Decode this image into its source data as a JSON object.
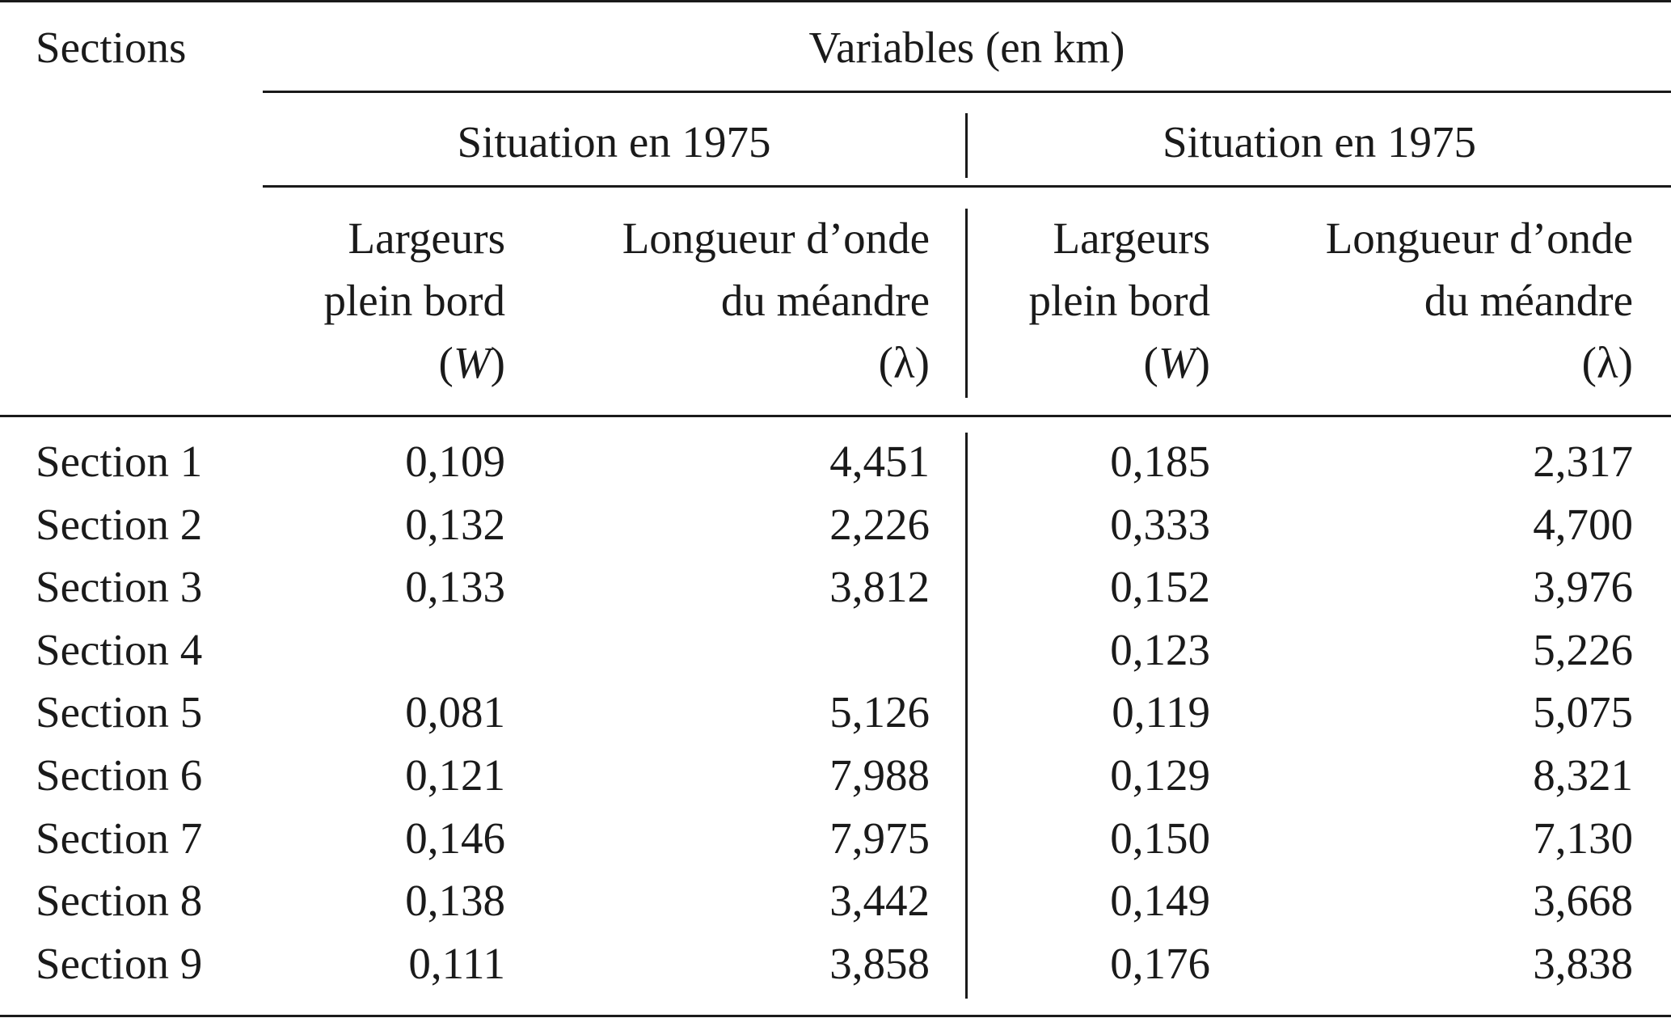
{
  "table": {
    "stub_header": "Sections",
    "top_header": "Variables (en km)",
    "groups": [
      {
        "label": "Situation en 1975"
      },
      {
        "label": "Situation en 1975"
      }
    ],
    "subheaders": [
      {
        "line1": "Largeurs",
        "line2": "plein bord",
        "symbol": "W"
      },
      {
        "line1": "Longueur d’onde",
        "line2": "du méandre",
        "symbol": "λ"
      },
      {
        "line1": "Largeurs",
        "line2": "plein bord",
        "symbol": "W"
      },
      {
        "line1": "Longueur d’onde",
        "line2": "du méandre",
        "symbol": "λ"
      }
    ],
    "rows": [
      {
        "section": "Section 1",
        "values": [
          "0,109",
          "4,451",
          "0,185",
          "2,317"
        ]
      },
      {
        "section": "Section 2",
        "values": [
          "0,132",
          "2,226",
          "0,333",
          "4,700"
        ]
      },
      {
        "section": "Section 3",
        "values": [
          "0,133",
          "3,812",
          "0,152",
          "3,976"
        ]
      },
      {
        "section": "Section 4",
        "values": [
          "",
          "",
          "0,123",
          "5,226"
        ]
      },
      {
        "section": "Section 5",
        "values": [
          "0,081",
          "5,126",
          "0,119",
          "5,075"
        ]
      },
      {
        "section": "Section 6",
        "values": [
          "0,121",
          "7,988",
          "0,129",
          "8,321"
        ]
      },
      {
        "section": "Section 7",
        "values": [
          "0,146",
          "7,975",
          "0,150",
          "7,130"
        ]
      },
      {
        "section": "Section 8",
        "values": [
          "0,138",
          "3,442",
          "0,149",
          "3,668"
        ]
      },
      {
        "section": "Section 9",
        "values": [
          "0,111",
          "3,858",
          "0,176",
          "3,838"
        ]
      }
    ]
  }
}
